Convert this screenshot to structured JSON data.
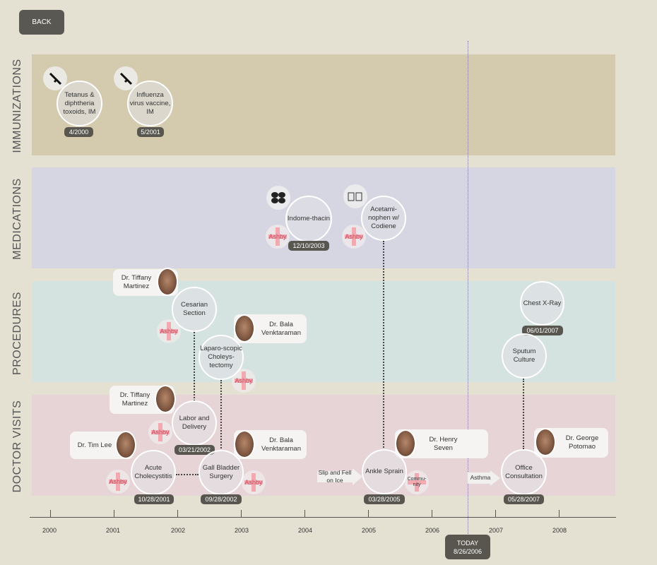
{
  "back_label": "BACK",
  "bands": {
    "immunizations": {
      "label": "IMMUNIZATIONS",
      "color": "#d4cbaf"
    },
    "medications": {
      "label": "MEDICATIONS",
      "color": "#d6d6e3"
    },
    "procedures": {
      "label": "PROCEDURES",
      "color": "#d4e3df"
    },
    "doctor_visits": {
      "label": "DOCTOR VISITS",
      "color": "#e6d4d7"
    }
  },
  "immunizations": [
    {
      "name": "Tetanus & diphtheria toxoids, IM",
      "date": "4/2000",
      "icon": "syringe-icon"
    },
    {
      "name": "Influenza virus vaccine, IM",
      "date": "5/2001",
      "icon": "syringe-icon"
    }
  ],
  "medications": [
    {
      "name": "Indome-thacin",
      "date": "12/10/2003",
      "icon": "pills-icon",
      "facility": "Ashby"
    },
    {
      "name": "Acetami-nophen w/ Codiene",
      "icon": "bottles-icon",
      "facility": "Ashby"
    }
  ],
  "procedures": [
    {
      "name": "Cesarian Section",
      "doctor": "Dr. Tiffany Martinez",
      "facility": "Ashby"
    },
    {
      "name": "Laparo-scopic Choleys-tectomy",
      "doctor": "Dr. Bala Venktaraman",
      "facility": "Ashby"
    },
    {
      "name": "Chest X-Ray",
      "date": "06/01/2007"
    },
    {
      "name": "Sputum Culture"
    }
  ],
  "visits": [
    {
      "name": "Acute Cholecystitis",
      "date": "10/28/2001",
      "doctor": "Dr. Tim Lee",
      "facility": "Ashby"
    },
    {
      "name": "Labor and Delivery",
      "date": "03/21/2002",
      "doctor": "Dr. Tiffany Martinez",
      "facility": "Ashby"
    },
    {
      "name": "Gall Bladder Surgery",
      "date": "09/28/2002",
      "doctor": "Dr. Bala Venktaraman",
      "facility": "Ashby"
    },
    {
      "name": "Ankle Sprain",
      "date": "03/28/2005",
      "doctor": "Dr. Henry Seven",
      "facility": "Commu-nity",
      "note": "Slip and Fell on Ice"
    },
    {
      "name": "Office Consultation",
      "date": "05/28/2007",
      "doctor": "Dr. George Potomao",
      "note": "Asthma"
    }
  ],
  "years": [
    "2000",
    "2001",
    "2002",
    "2003",
    "2004",
    "2005",
    "2006",
    "2007",
    "2008"
  ],
  "today": {
    "label": "TODAY",
    "date": "8/26/2006"
  }
}
